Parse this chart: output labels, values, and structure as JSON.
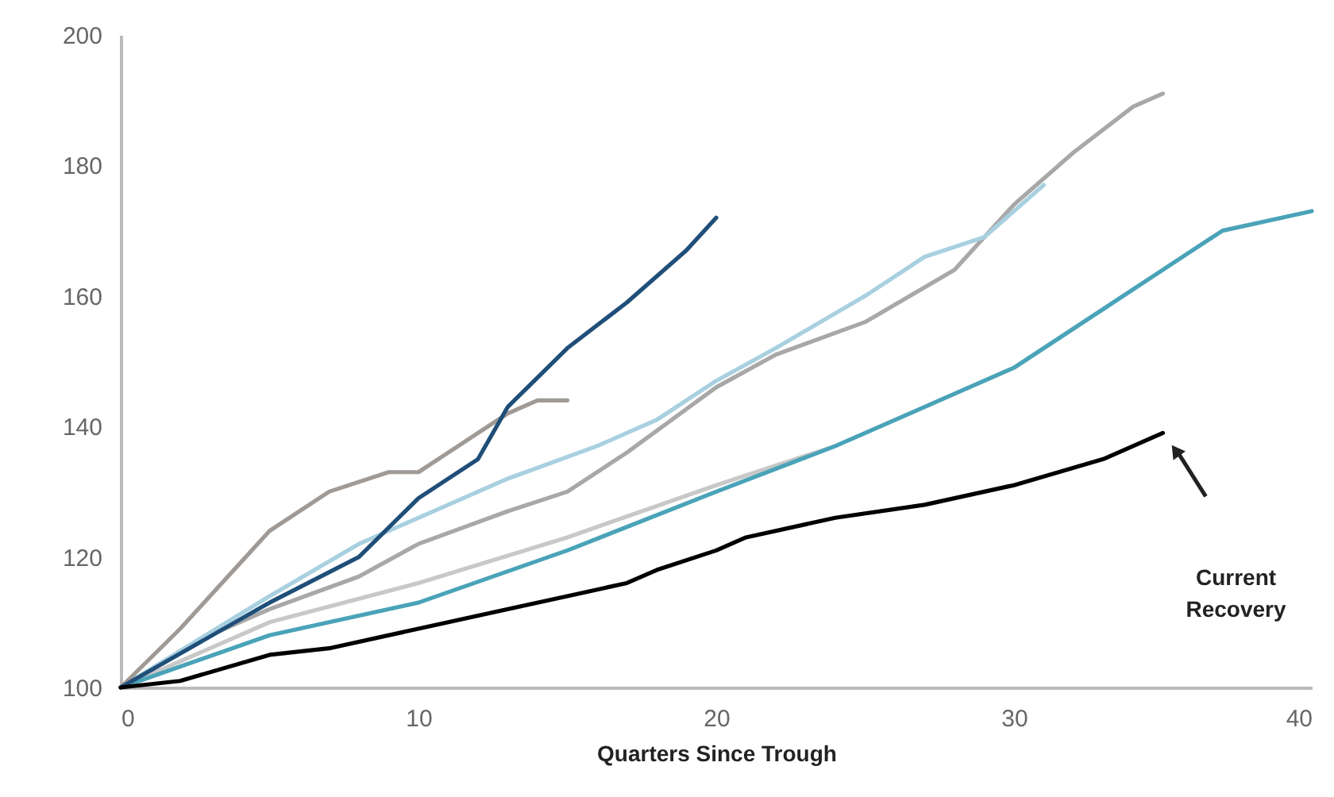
{
  "chart_data": {
    "type": "line",
    "xlabel": "Quarters Since Trough",
    "xlim": [
      0,
      40
    ],
    "xticks": [
      0,
      10,
      20,
      30,
      40
    ],
    "ylim": [
      100,
      200
    ],
    "yticks": [
      100,
      120,
      140,
      160,
      180,
      200
    ],
    "grid": false,
    "legend": false,
    "line_style": "solid",
    "marker": "none",
    "series": [
      {
        "color": "#c8c8c8",
        "x": [
          0,
          5,
          10,
          15,
          20,
          24
        ],
        "values": [
          100,
          110,
          116,
          123,
          131,
          137
        ]
      },
      {
        "color": "#4aa3b8",
        "x": [
          0,
          5,
          10,
          15,
          20,
          24,
          27,
          30,
          33,
          35,
          37,
          40
        ],
        "values": [
          100,
          108,
          113,
          121,
          130,
          137,
          143,
          149,
          158,
          164,
          170,
          173
        ]
      },
      {
        "color": "#a8a8a8",
        "x": [
          0,
          3,
          5,
          8,
          10,
          13,
          15,
          17,
          20,
          22,
          25,
          28,
          30,
          32,
          34,
          35
        ],
        "values": [
          100,
          108,
          112,
          117,
          122,
          127,
          130,
          136,
          146,
          151,
          156,
          164,
          174,
          182,
          189,
          191
        ]
      },
      {
        "color": "#a8d0e0",
        "x": [
          0,
          5,
          8,
          10,
          13,
          16,
          18,
          20,
          22,
          25,
          27,
          29,
          31
        ],
        "values": [
          100,
          114,
          122,
          126,
          132,
          137,
          141,
          147,
          152,
          160,
          166,
          169,
          177
        ]
      },
      {
        "color": "#a09a96",
        "x": [
          0,
          2,
          5,
          7,
          9,
          10,
          11,
          13,
          14,
          15
        ],
        "values": [
          100,
          109,
          124,
          130,
          133,
          133,
          136,
          142,
          144,
          144
        ]
      },
      {
        "color": "#1f4e79",
        "x": [
          0,
          5,
          8,
          10,
          12,
          13,
          15,
          17,
          19,
          20
        ],
        "values": [
          100,
          113,
          120,
          129,
          135,
          143,
          152,
          159,
          167,
          172
        ]
      },
      {
        "color": "#000000",
        "x": [
          0,
          2,
          5,
          7,
          10,
          15,
          17,
          18,
          20,
          21,
          24,
          27,
          30,
          33,
          35
        ],
        "values": [
          100,
          101,
          105,
          106,
          109,
          114,
          116,
          118,
          121,
          123,
          126,
          128,
          131,
          135,
          139
        ]
      }
    ],
    "annotations": [
      "Current Recovery"
    ]
  }
}
